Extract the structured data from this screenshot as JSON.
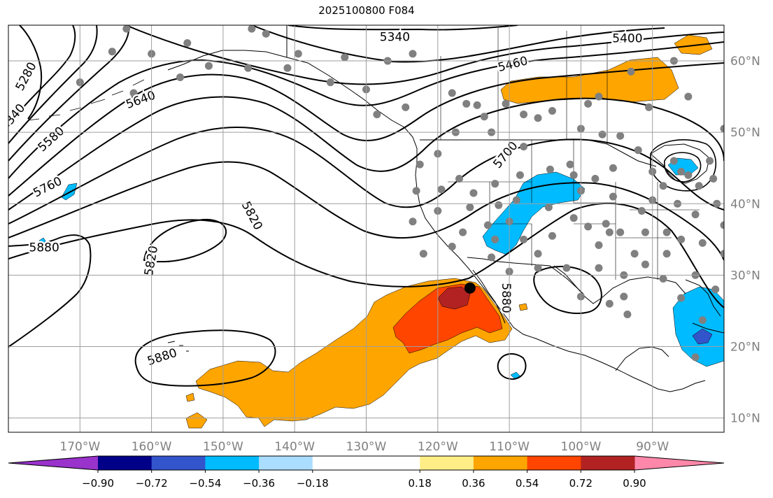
{
  "title": "2025100800 F084",
  "map": {
    "projection": "plate-carree",
    "lon_range": [
      -180,
      -80
    ],
    "lat_range": [
      8,
      65
    ],
    "lon_ticks": [
      {
        "value": -170,
        "label": "170°W"
      },
      {
        "value": -160,
        "label": "160°W"
      },
      {
        "value": -150,
        "label": "150°W"
      },
      {
        "value": -140,
        "label": "140°W"
      },
      {
        "value": -130,
        "label": "130°W"
      },
      {
        "value": -120,
        "label": "120°W"
      },
      {
        "value": -110,
        "label": "110°W"
      },
      {
        "value": -100,
        "label": "100°W"
      },
      {
        "value": -90,
        "label": "90°W"
      }
    ],
    "lat_ticks": [
      {
        "value": 60,
        "label": "60°N"
      },
      {
        "value": 50,
        "label": "50°N"
      },
      {
        "value": 40,
        "label": "40°N"
      },
      {
        "value": 30,
        "label": "30°N"
      },
      {
        "value": 20,
        "label": "20°N"
      },
      {
        "value": 10,
        "label": "10°N"
      }
    ],
    "grid": true,
    "gridline_color": "#9e9e9e",
    "tick_label_color": "#808080",
    "contour_labels": [
      {
        "text": "5340",
        "lon": -126,
        "lat": 63.3,
        "angle": 0
      },
      {
        "text": "5400",
        "lon": -93.5,
        "lat": 63.1,
        "angle": 0
      },
      {
        "text": "5460",
        "lon": -109.5,
        "lat": 59.5,
        "angle": -14
      },
      {
        "text": "5640",
        "lon": -161.5,
        "lat": 54.5,
        "angle": -20
      },
      {
        "text": "5280",
        "lon": -177.5,
        "lat": 57.8,
        "angle": -62
      },
      {
        "text": "340",
        "lon": -179,
        "lat": 52.5,
        "angle": -50
      },
      {
        "text": "5580",
        "lon": -174,
        "lat": 49,
        "angle": -42
      },
      {
        "text": "5760",
        "lon": -174.5,
        "lat": 42.3,
        "angle": -27
      },
      {
        "text": "5880",
        "lon": -175,
        "lat": 33.8,
        "angle": 0
      },
      {
        "text": "5820",
        "lon": -160,
        "lat": 32,
        "angle": -80
      },
      {
        "text": "5820",
        "lon": -146,
        "lat": 38.3,
        "angle": 62
      },
      {
        "text": "5700",
        "lon": -110.5,
        "lat": 46.8,
        "angle": -50
      },
      {
        "text": "5880",
        "lon": -158.5,
        "lat": 18.5,
        "angle": -18
      },
      {
        "text": "5880",
        "lon": -110.5,
        "lat": 26.8,
        "angle": 90
      }
    ],
    "station_dots_color": "#808080",
    "highlight_point": {
      "lon": -115.5,
      "lat": 28.2,
      "color": "#000000"
    },
    "palette": {
      "neg_090": "#9933cc",
      "neg_072": "#000088",
      "neg_054": "#3355cc",
      "neg_036": "#00bbff",
      "neg_018": "#aaddff",
      "zero": "#ffffff",
      "pos_018": "#ffee88",
      "pos_036": "#ffa500",
      "pos_054": "#ff4500",
      "pos_072": "#b22222",
      "pos_090": "#ff88aa"
    }
  },
  "colorbar": {
    "orientation": "horizontal",
    "extend": "both",
    "bins": [
      "#9933cc",
      "#000088",
      "#3355cc",
      "#00bbff",
      "#aaddff",
      "#ffffff",
      "#ffffff",
      "#ffee88",
      "#ffa500",
      "#ff4500",
      "#b22222",
      "#ff88aa"
    ],
    "ticks": [
      {
        "value": -0.9,
        "label": "−0.90"
      },
      {
        "value": -0.72,
        "label": "−0.72"
      },
      {
        "value": -0.54,
        "label": "−0.54"
      },
      {
        "value": -0.36,
        "label": "−0.36"
      },
      {
        "value": -0.18,
        "label": "−0.18"
      },
      {
        "value": 0.18,
        "label": "0.18"
      },
      {
        "value": 0.36,
        "label": "0.36"
      },
      {
        "value": 0.54,
        "label": "0.54"
      },
      {
        "value": 0.72,
        "label": "0.72"
      },
      {
        "value": 0.9,
        "label": "0.90"
      }
    ]
  }
}
